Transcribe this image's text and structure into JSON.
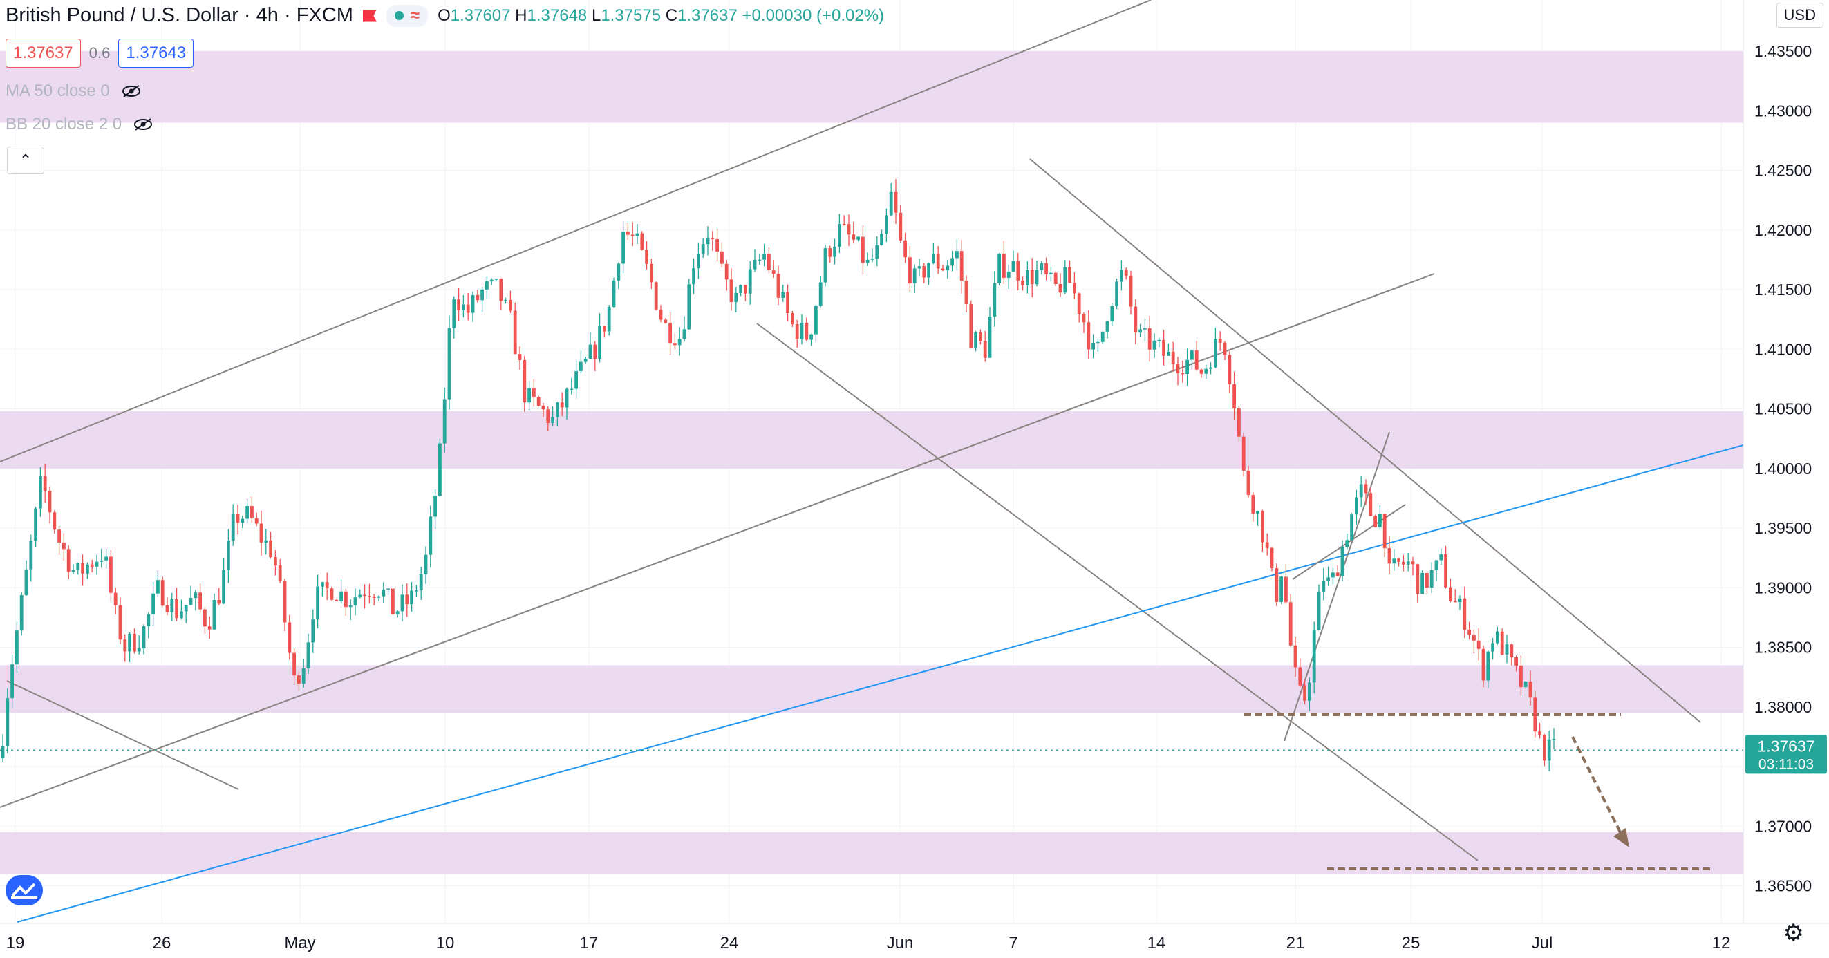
{
  "header": {
    "title": "British Pound / U.S. Dollar",
    "interval": "4h",
    "exchange": "FXCM",
    "ohlc": {
      "o": "1.37607",
      "h": "1.37648",
      "l": "1.37575",
      "c": "1.37637",
      "change": "+0.00030 (+0.02%)"
    }
  },
  "quote": {
    "sell": "1.37637",
    "spread": "0.6",
    "buy": "1.37643"
  },
  "indicators": [
    {
      "label": "MA 50 close 0"
    },
    {
      "label": "BB 20 close 2 0"
    }
  ],
  "currency_button": "USD",
  "price_tag": {
    "price": "1.37637",
    "countdown": "03:11:03"
  },
  "icons": {
    "eye_off": "eye-off-icon",
    "collapse": "chevron-up-icon",
    "logo": "tradingview-logo-icon",
    "settings": "gear-icon"
  },
  "colors": {
    "up": "#26a69a",
    "down": "#ef5350",
    "zone": "#e9d3ee",
    "trend_blue": "#2196f3",
    "drawing": "#8a8480",
    "target": "#8b6f5a"
  },
  "chart_data": {
    "type": "candlestick",
    "symbol": "GBPUSD",
    "yaxis": {
      "ticks": [
        "1.43500",
        "1.43000",
        "1.42500",
        "1.42000",
        "1.41500",
        "1.41000",
        "1.40500",
        "1.40000",
        "1.39500",
        "1.39000",
        "1.38500",
        "1.38000",
        "1.37500",
        "1.37000",
        "1.36500"
      ],
      "range": [
        1.3625,
        1.4372
      ]
    },
    "xaxis": {
      "ticks": [
        "19",
        "26",
        "May",
        "10",
        "17",
        "24",
        "Jun",
        "7",
        "14",
        "21",
        "25",
        "Jul",
        "12"
      ]
    },
    "key_prices": [
      1.38,
      1.4,
      1.4235,
      1.379,
      1.366,
      1.3764
    ],
    "price_path": [
      [
        0,
        1.3757
      ],
      [
        12,
        1.382
      ],
      [
        35,
        1.39
      ],
      [
        60,
        1.399
      ],
      [
        85,
        1.394
      ],
      [
        110,
        1.391
      ],
      [
        128,
        1.392
      ],
      [
        150,
        1.393
      ],
      [
        165,
        1.388
      ],
      [
        180,
        1.385
      ],
      [
        205,
        1.386
      ],
      [
        230,
        1.39
      ],
      [
        255,
        1.388
      ],
      [
        280,
        1.389
      ],
      [
        300,
        1.387
      ],
      [
        320,
        1.39
      ],
      [
        340,
        1.396
      ],
      [
        360,
        1.396
      ],
      [
        380,
        1.394
      ],
      [
        395,
        1.393
      ],
      [
        410,
        1.388
      ],
      [
        425,
        1.382
      ],
      [
        440,
        1.384
      ],
      [
        455,
        1.389
      ],
      [
        480,
        1.39
      ],
      [
        505,
        1.389
      ],
      [
        530,
        1.39
      ],
      [
        550,
        1.39
      ],
      [
        570,
        1.388
      ],
      [
        595,
        1.389
      ],
      [
        615,
        1.392
      ],
      [
        635,
        1.4
      ],
      [
        655,
        1.415
      ],
      [
        675,
        1.413
      ],
      [
        700,
        1.415
      ],
      [
        720,
        1.415
      ],
      [
        740,
        1.412
      ],
      [
        760,
        1.406
      ],
      [
        780,
        1.405
      ],
      [
        800,
        1.404
      ],
      [
        820,
        1.406
      ],
      [
        840,
        1.408
      ],
      [
        860,
        1.41
      ],
      [
        880,
        1.413
      ],
      [
        900,
        1.42
      ],
      [
        920,
        1.419
      ],
      [
        940,
        1.416
      ],
      [
        960,
        1.412
      ],
      [
        985,
        1.411
      ],
      [
        1005,
        1.418
      ],
      [
        1025,
        1.42
      ],
      [
        1045,
        1.416
      ],
      [
        1065,
        1.414
      ],
      [
        1085,
        1.416
      ],
      [
        1105,
        1.418
      ],
      [
        1125,
        1.415
      ],
      [
        1145,
        1.412
      ],
      [
        1170,
        1.411
      ],
      [
        1195,
        1.418
      ],
      [
        1215,
        1.42
      ],
      [
        1235,
        1.419
      ],
      [
        1255,
        1.417
      ],
      [
        1275,
        1.4185
      ],
      [
        1290,
        1.423
      ],
      [
        1305,
        1.418
      ],
      [
        1325,
        1.4155
      ],
      [
        1345,
        1.4175
      ],
      [
        1365,
        1.417
      ],
      [
        1385,
        1.418
      ],
      [
        1405,
        1.411
      ],
      [
        1425,
        1.41
      ],
      [
        1445,
        1.417
      ],
      [
        1465,
        1.417
      ],
      [
        1485,
        1.416
      ],
      [
        1505,
        1.4165
      ],
      [
        1525,
        1.415
      ],
      [
        1545,
        1.416
      ],
      [
        1565,
        1.413
      ],
      [
        1585,
        1.409
      ],
      [
        1605,
        1.414
      ],
      [
        1625,
        1.4165
      ],
      [
        1645,
        1.411
      ],
      [
        1665,
        1.4105
      ],
      [
        1685,
        1.4095
      ],
      [
        1705,
        1.409
      ],
      [
        1725,
        1.409
      ],
      [
        1740,
        1.408
      ],
      [
        1755,
        1.41
      ],
      [
        1770,
        1.411
      ],
      [
        1785,
        1.406
      ],
      [
        1800,
        1.399
      ],
      [
        1815,
        1.397
      ],
      [
        1830,
        1.394
      ],
      [
        1845,
        1.389
      ],
      [
        1855,
        1.392
      ],
      [
        1865,
        1.386
      ],
      [
        1875,
        1.382
      ],
      [
        1885,
        1.38
      ],
      [
        1895,
        1.383
      ],
      [
        1905,
        1.388
      ],
      [
        1915,
        1.391
      ],
      [
        1925,
        1.39
      ],
      [
        1940,
        1.393
      ],
      [
        1955,
        1.396
      ],
      [
        1970,
        1.398
      ],
      [
        1985,
        1.396
      ],
      [
        2000,
        1.396
      ],
      [
        2010,
        1.391
      ],
      [
        2025,
        1.392
      ],
      [
        2040,
        1.392
      ],
      [
        2055,
        1.39
      ],
      [
        2070,
        1.391
      ],
      [
        2085,
        1.392
      ],
      [
        2100,
        1.389
      ],
      [
        2115,
        1.388
      ],
      [
        2130,
        1.386
      ],
      [
        2145,
        1.383
      ],
      [
        2160,
        1.386
      ],
      [
        2175,
        1.385
      ],
      [
        2190,
        1.383
      ],
      [
        2205,
        1.3815
      ],
      [
        2220,
        1.379
      ],
      [
        2230,
        1.3765
      ],
      [
        2240,
        1.3763
      ],
      [
        2248,
        1.3764
      ]
    ]
  }
}
